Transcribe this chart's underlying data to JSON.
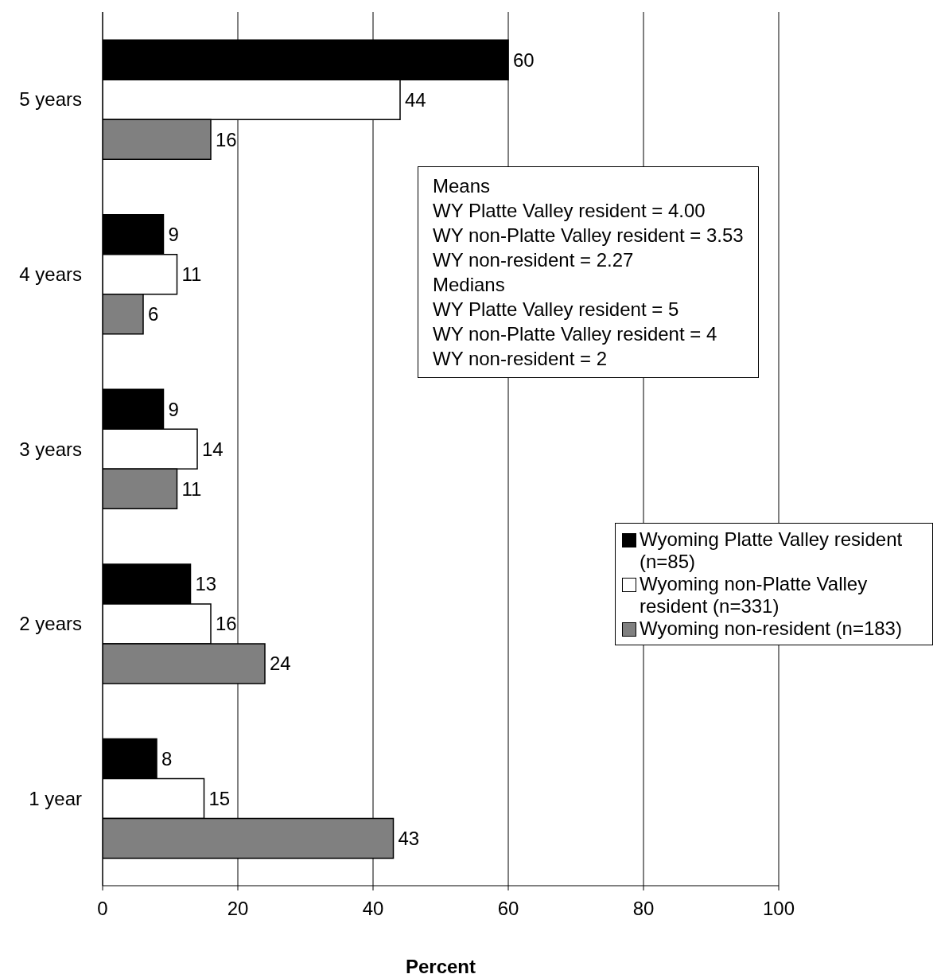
{
  "chart_data": {
    "type": "bar",
    "orientation": "horizontal",
    "xlabel": "Percent",
    "categories": [
      "5 years",
      "4 years",
      "3 years",
      "2 years",
      "1 year"
    ],
    "series": [
      {
        "name": "Wyoming Platte Valley resident (n=85)",
        "color": "#000000",
        "values": [
          60,
          9,
          9,
          13,
          8
        ]
      },
      {
        "name": "Wyoming non-Platte Valley resident (n=331)",
        "color": "#ffffff",
        "values": [
          44,
          11,
          14,
          16,
          15
        ]
      },
      {
        "name": "Wyoming non-resident (n=183)",
        "color": "#808080",
        "values": [
          16,
          6,
          11,
          24,
          43
        ]
      }
    ],
    "xlim": [
      0,
      100
    ],
    "xticks": [
      0,
      20,
      40,
      60,
      80,
      100
    ],
    "grid": "x",
    "legend": "right",
    "data_labels": true,
    "annotations": [
      "Means",
      "WY Platte Valley resident = 4.00",
      "WY non-Platte Valley resident = 3.53",
      "WY non-resident = 2.27",
      "Medians",
      "WY Platte Valley resident = 5",
      "WY non-Platte Valley resident = 4",
      "WY non-resident = 2"
    ]
  }
}
